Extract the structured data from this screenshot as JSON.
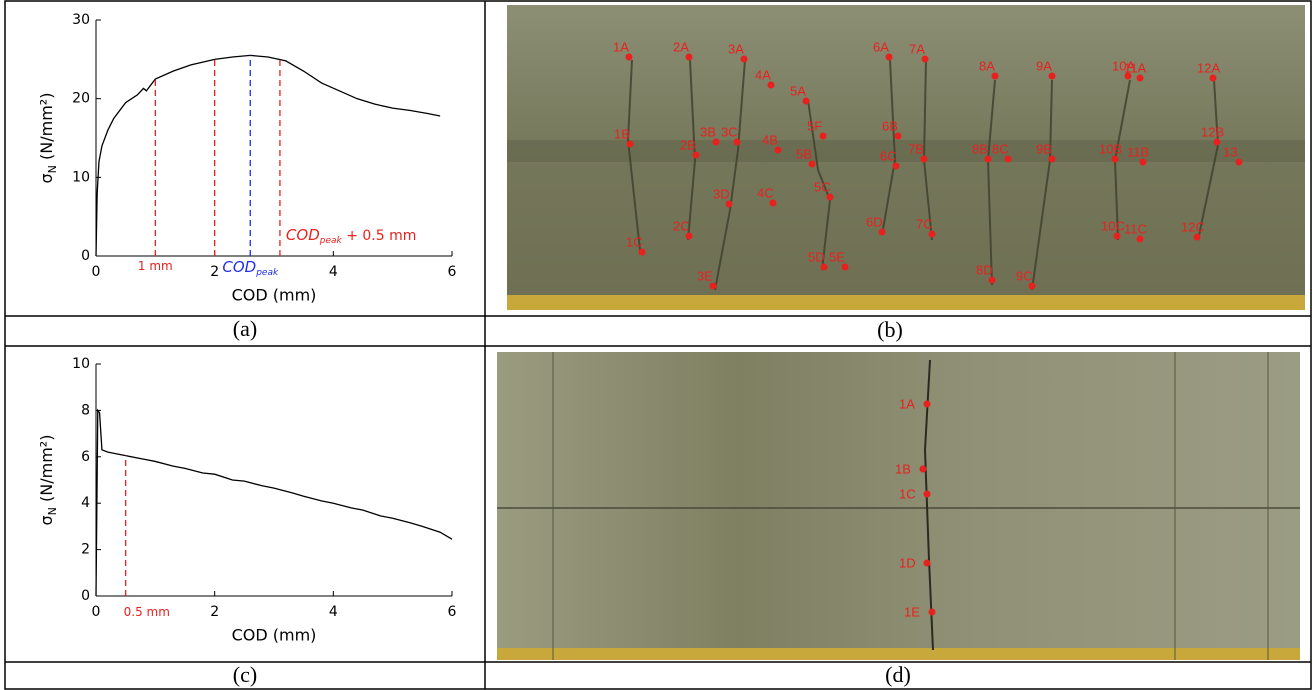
{
  "chart_data": [
    {
      "type": "line",
      "caption": "(a)",
      "xlabel": "COD (mm)",
      "ylabel": {
        "symbol": "σ",
        "subscript": "N",
        "unit": " (N/mm²)"
      },
      "xlim": [
        0,
        6
      ],
      "ylim": [
        0,
        30
      ],
      "xticks": [
        0,
        2,
        4,
        6
      ],
      "yticks": [
        0,
        10,
        20,
        30
      ],
      "series": [
        {
          "color": "#000000",
          "x": [
            0,
            0.02,
            0.05,
            0.1,
            0.2,
            0.3,
            0.5,
            0.7,
            0.8,
            0.85,
            1,
            1.3,
            1.6,
            2,
            2.3,
            2.6,
            2.9,
            3.2,
            3.5,
            3.8,
            4.1,
            4.4,
            4.7,
            5,
            5.3,
            5.6,
            5.8
          ],
          "values": [
            0,
            8,
            12,
            14,
            16,
            17.5,
            19.5,
            20.5,
            21.3,
            21,
            22.5,
            23.5,
            24.3,
            25,
            25.3,
            25.5,
            25.3,
            24.8,
            23.5,
            22,
            21,
            20,
            19.3,
            18.8,
            18.5,
            18.1,
            17.8
          ]
        }
      ],
      "markers": [
        {
          "x": 1,
          "color": "#e8211f",
          "label": {
            "main": "1 mm"
          }
        },
        {
          "x": 2,
          "color": "#e8211f"
        },
        {
          "x": 2.6,
          "color": "#1f2ee8",
          "label": {
            "main": "COD",
            "sub": "peak"
          }
        },
        {
          "x": 3.1,
          "color": "#e8211f",
          "label": {
            "main": "COD",
            "sub": "peak",
            "rest": " + 0.5 mm"
          }
        }
      ]
    },
    {
      "type": "line",
      "caption": "(c)",
      "xlabel": "COD (mm)",
      "ylabel": {
        "symbol": "σ",
        "subscript": "N",
        "unit": " (N/mm²)"
      },
      "xlim": [
        0,
        6
      ],
      "ylim": [
        0,
        10
      ],
      "xticks": [
        0,
        2,
        4,
        6
      ],
      "yticks": [
        0,
        2,
        4,
        6,
        8,
        10
      ],
      "series": [
        {
          "color": "#000000",
          "x": [
            0,
            0.03,
            0.06,
            0.1,
            0.2,
            0.5,
            0.8,
            1,
            1.3,
            1.5,
            1.8,
            2,
            2.3,
            2.5,
            2.8,
            3,
            3.3,
            3.5,
            3.8,
            4,
            4.3,
            4.5,
            4.8,
            5,
            5.3,
            5.5,
            5.8,
            6
          ],
          "values": [
            0,
            8,
            7.9,
            6.3,
            6.2,
            6.05,
            5.9,
            5.8,
            5.6,
            5.5,
            5.3,
            5.25,
            5.0,
            4.95,
            4.75,
            4.65,
            4.45,
            4.3,
            4.1,
            4.0,
            3.8,
            3.7,
            3.45,
            3.35,
            3.15,
            3.0,
            2.75,
            2.45
          ]
        }
      ],
      "markers": [
        {
          "x": 0.5,
          "color": "#e8211f",
          "label": {
            "main": "0.5 mm"
          }
        }
      ]
    }
  ],
  "photos": [
    {
      "caption": "(b)",
      "points": [
        "1A",
        "2A",
        "3A",
        "4A",
        "5A",
        "6A",
        "7A",
        "8A",
        "9A",
        "10A",
        "11A",
        "12A",
        "1B",
        "2B",
        "3B",
        "3C",
        "4B",
        "5B",
        "5F",
        "6B",
        "6C",
        "7B",
        "8B",
        "8C",
        "9B",
        "10B",
        "11B",
        "12B",
        "13",
        "1C",
        "2C",
        "3D",
        "4C",
        "5C",
        "3E",
        "5D",
        "5E",
        "6D",
        "7C",
        "8D",
        "9C",
        "10C",
        "11C",
        "12C"
      ]
    },
    {
      "caption": "(d)",
      "points": [
        "1A",
        "1B",
        "1C",
        "1D",
        "1E"
      ]
    }
  ]
}
